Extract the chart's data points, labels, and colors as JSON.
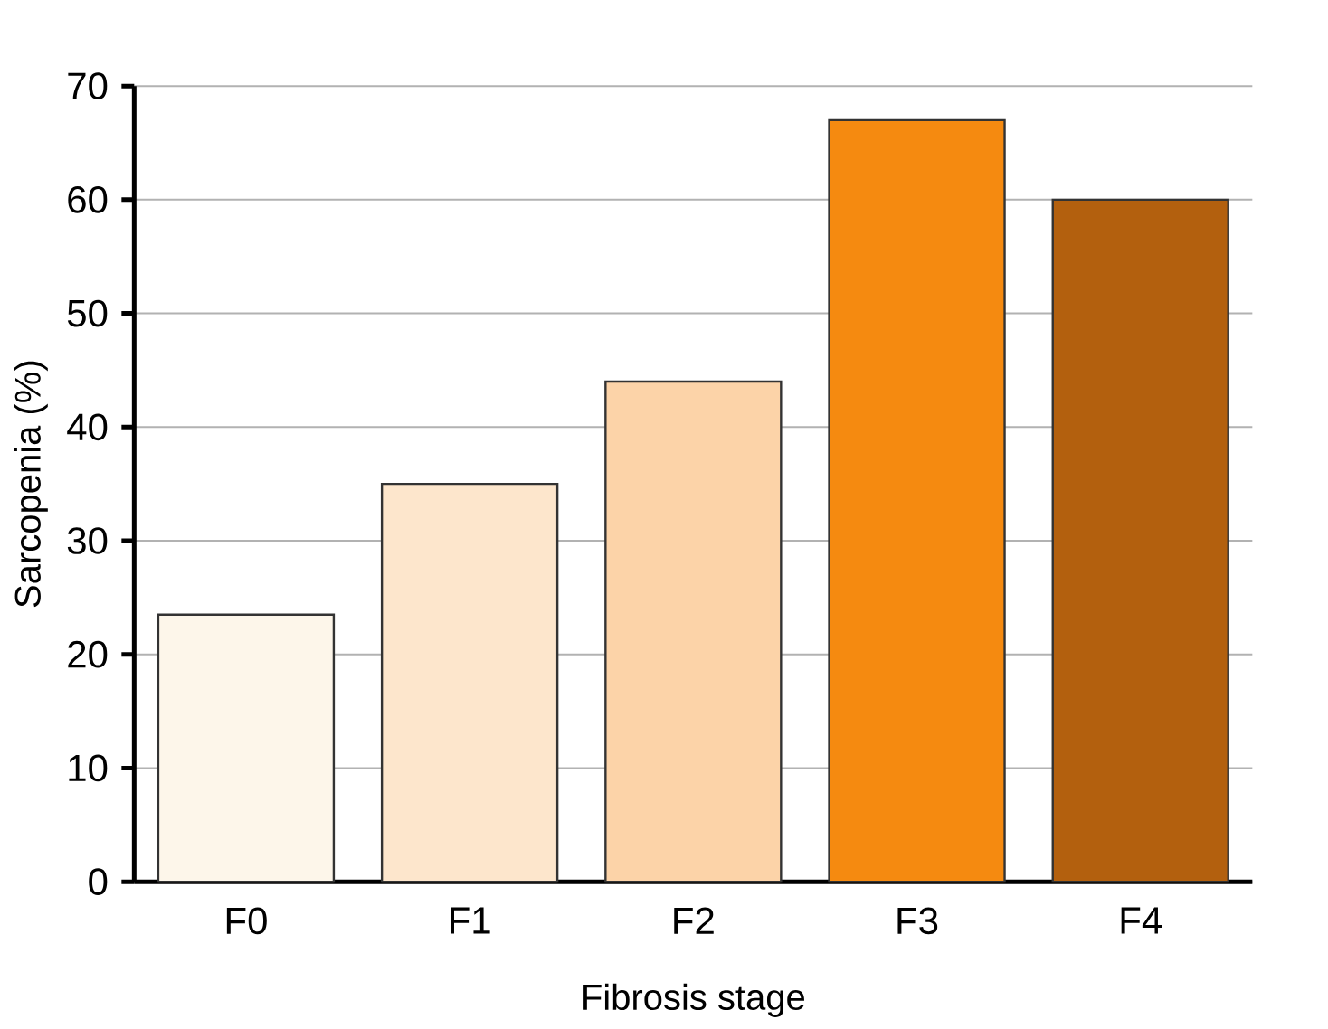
{
  "chart_data": {
    "type": "bar",
    "xlabel": "Fibrosis stage",
    "ylabel": "Sarcopenia (%)",
    "categories": [
      "F0",
      "F1",
      "F2",
      "F3",
      "F4"
    ],
    "values": [
      23.5,
      35,
      44,
      67,
      60
    ],
    "colors": [
      "#fdf6ea",
      "#fde6cc",
      "#fcd3a8",
      "#f58a10",
      "#b3600e"
    ],
    "ylim": [
      0,
      70
    ],
    "yticks": [
      0,
      10,
      20,
      30,
      40,
      50,
      60,
      70
    ],
    "grid": "y"
  }
}
